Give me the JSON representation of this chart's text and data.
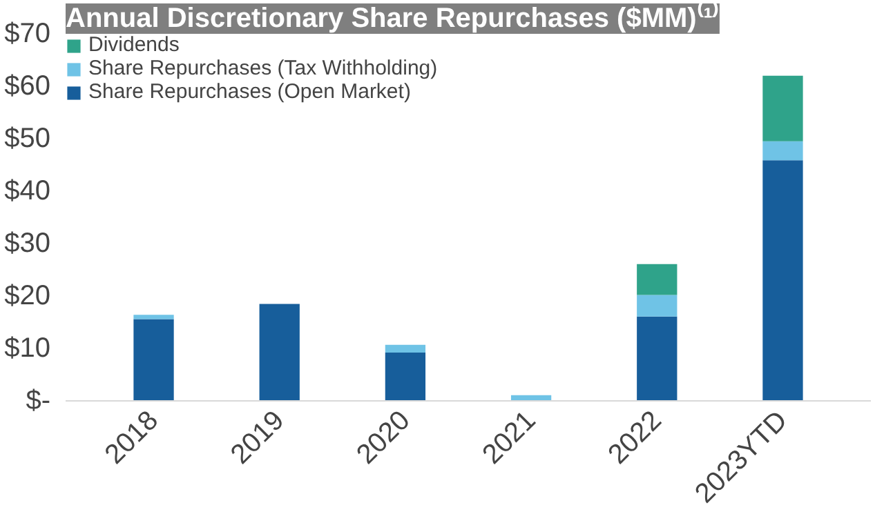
{
  "chart_data": {
    "type": "bar",
    "stacked": true,
    "title": "Annual Discretionary Share Repurchases ($MM)⁽¹⁾",
    "categories": [
      "2018",
      "2019",
      "2020",
      "2021",
      "2022",
      "2023YTD"
    ],
    "series": [
      {
        "name": "Share Repurchases (Open Market)",
        "color": "#175e9b",
        "values": [
          15.6,
          18.5,
          9.2,
          0,
          16.1,
          45.9
        ]
      },
      {
        "name": "Share Repurchases (Tax Withholding)",
        "color": "#6fc3e6",
        "values": [
          0.8,
          0,
          1.5,
          1.1,
          4.1,
          3.6
        ]
      },
      {
        "name": "Dividends",
        "color": "#2fa38a",
        "values": [
          0,
          0,
          0,
          0,
          5.9,
          12.5
        ]
      }
    ],
    "ylim": [
      0,
      70
    ],
    "yticks": [
      {
        "value": 0,
        "label": "$-"
      },
      {
        "value": 10,
        "label": "$10"
      },
      {
        "value": 20,
        "label": "$20"
      },
      {
        "value": 30,
        "label": "$30"
      },
      {
        "value": 40,
        "label": "$40"
      },
      {
        "value": 50,
        "label": "$50"
      },
      {
        "value": 60,
        "label": "$60"
      },
      {
        "value": 70,
        "label": "$70"
      }
    ],
    "grid": false,
    "legend": "top left"
  }
}
